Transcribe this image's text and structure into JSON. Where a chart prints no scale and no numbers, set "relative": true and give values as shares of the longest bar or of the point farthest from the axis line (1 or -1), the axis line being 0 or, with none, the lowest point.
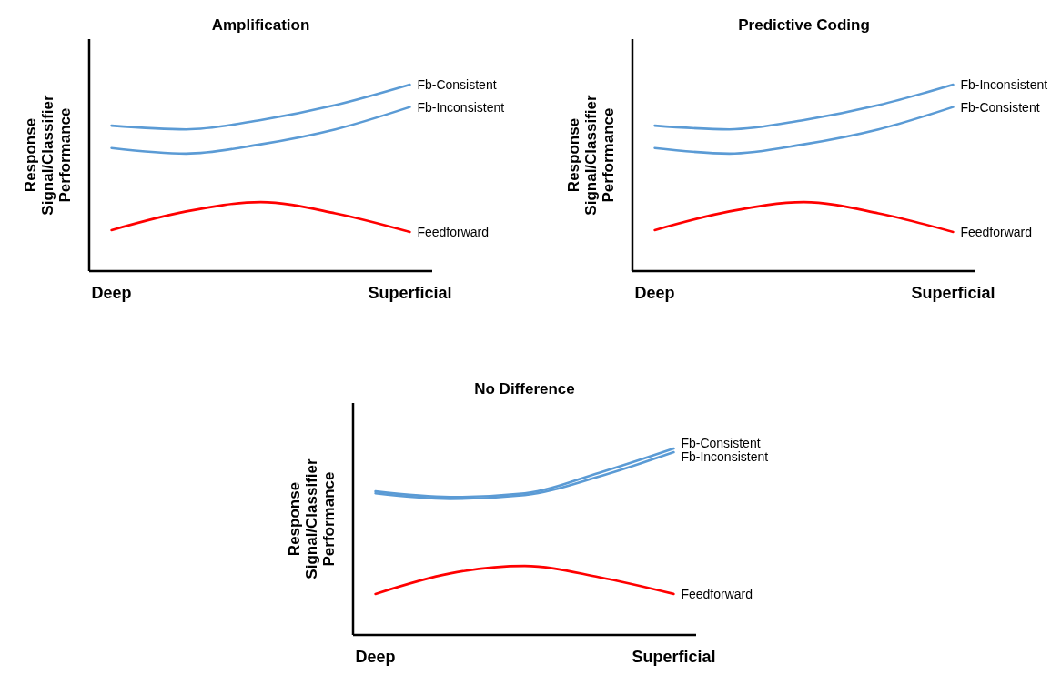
{
  "chart_data": [
    {
      "type": "line",
      "title": "Amplification",
      "ylabel": "Response Signal/Classifier Performance",
      "relative": true,
      "legend": false,
      "categories": [
        "Deep",
        null,
        null,
        null,
        "Superficial"
      ],
      "series": [
        {
          "name": "Fb-Consistent",
          "color": "#5b9bd5",
          "values": [
            0.78,
            0.76,
            0.81,
            0.89,
            1
          ]
        },
        {
          "name": "Fb-Inconsistent",
          "color": "#5b9bd5",
          "values": [
            0.66,
            0.63,
            0.68,
            0.76,
            0.88
          ]
        },
        {
          "name": "Feedforward",
          "color": "#ff0000",
          "values": [
            0.22,
            0.32,
            0.37,
            0.31,
            0.21
          ]
        }
      ]
    },
    {
      "type": "line",
      "title": "Predictive Coding",
      "ylabel": "Response Signal/Classifier Performance",
      "relative": true,
      "legend": false,
      "categories": [
        "Deep",
        null,
        null,
        null,
        "Superficial"
      ],
      "series": [
        {
          "name": "Fb-Inconsistent",
          "color": "#5b9bd5",
          "values": [
            0.78,
            0.76,
            0.81,
            0.89,
            1
          ]
        },
        {
          "name": "Fb-Consistent",
          "color": "#5b9bd5",
          "values": [
            0.66,
            0.63,
            0.68,
            0.76,
            0.88
          ]
        },
        {
          "name": "Feedforward",
          "color": "#ff0000",
          "values": [
            0.22,
            0.32,
            0.37,
            0.31,
            0.21
          ]
        }
      ]
    },
    {
      "type": "line",
      "title": "No Difference",
      "ylabel": "Response Signal/Classifier Performance",
      "relative": true,
      "legend": false,
      "categories": [
        "Deep",
        null,
        null,
        null,
        "Superficial"
      ],
      "series": [
        {
          "name": "Fb-Consistent",
          "color": "#5b9bd5",
          "values": [
            0.77,
            0.74,
            0.76,
            0.87,
            1
          ]
        },
        {
          "name": "Fb-Inconsistent",
          "color": "#5b9bd5",
          "values": [
            0.76,
            0.73,
            0.75,
            0.85,
            0.98
          ]
        },
        {
          "name": "Feedforward",
          "color": "#ff0000",
          "values": [
            0.22,
            0.33,
            0.37,
            0.31,
            0.22
          ]
        }
      ]
    }
  ]
}
